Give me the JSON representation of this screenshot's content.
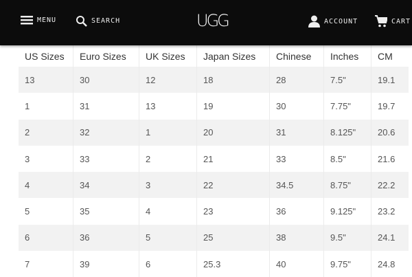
{
  "header": {
    "menu": "MENU",
    "search": "SEARCH",
    "logo": "UGG",
    "account": "ACCOUNT",
    "cart": "CART"
  },
  "table": {
    "columns": [
      "US Sizes",
      "Euro Sizes",
      "UK Sizes",
      "Japan Sizes",
      "Chinese",
      "Inches",
      "CM"
    ],
    "rows": [
      [
        "13",
        "30",
        "12",
        "18",
        "28",
        "7.5\"",
        "19.1"
      ],
      [
        "1",
        "31",
        "13",
        "19",
        "30",
        "7.75\"",
        "19.7"
      ],
      [
        "2",
        "32",
        "1",
        "20",
        "31",
        "8.125\"",
        "20.6"
      ],
      [
        "3",
        "33",
        "2",
        "21",
        "33",
        "8.5\"",
        "21.6"
      ],
      [
        "4",
        "34",
        "3",
        "22",
        "34.5",
        "8.75\"",
        "22.2"
      ],
      [
        "5",
        "35",
        "4",
        "23",
        "36",
        "9.125\"",
        "23.2"
      ],
      [
        "6",
        "36",
        "5",
        "25",
        "38",
        "9.5\"",
        "24.1"
      ],
      [
        "7",
        "39",
        "6",
        "25.3",
        "40",
        "9.75\"",
        "24.8"
      ]
    ]
  }
}
